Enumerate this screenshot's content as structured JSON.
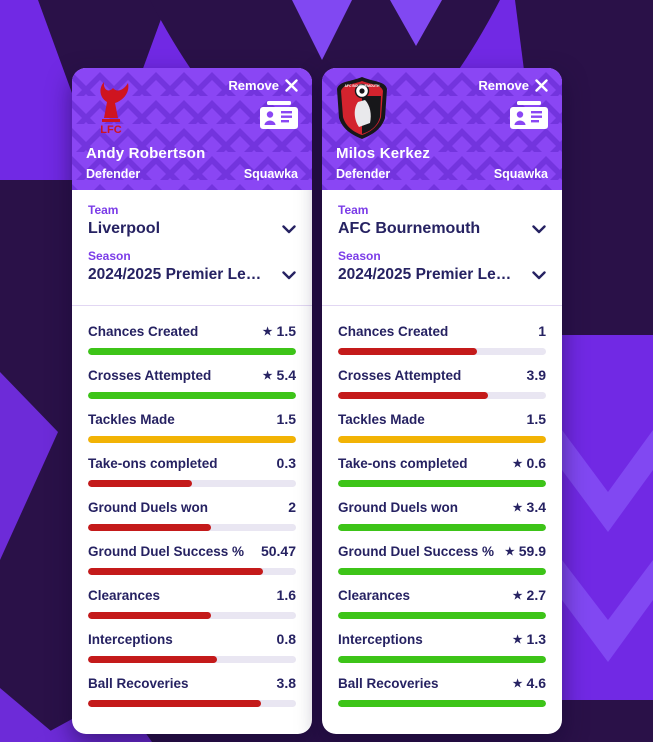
{
  "icons": {
    "star": "★",
    "close": "✕"
  },
  "colors": {
    "page_purple": "#7129e4",
    "page_dark": "#2a1148",
    "header_purple": "#8a46f4",
    "accent_purple": "#7b3ce8",
    "text_navy": "#262262",
    "bar_green": "#3dc418",
    "bar_amber": "#f2b305",
    "bar_red": "#c41a1a",
    "bar_track": "#e9e6f2"
  },
  "cards": [
    {
      "remove_label": "Remove",
      "crest_name": "Liverpool crest",
      "crest_text": "LFC",
      "player": {
        "name": "Andy Robertson",
        "position": "Defender"
      },
      "brand": "Squawka",
      "team": {
        "label": "Team",
        "value": "Liverpool"
      },
      "season": {
        "label": "Season",
        "value": "2024/2025 Premier Le…"
      },
      "stats": [
        {
          "label": "Chances Created",
          "value": "1.5",
          "star": true,
          "color": "green",
          "fill_pct": 100
        },
        {
          "label": "Crosses Attempted",
          "value": "5.4",
          "star": true,
          "color": "green",
          "fill_pct": 100
        },
        {
          "label": "Tackles Made",
          "value": "1.5",
          "star": false,
          "color": "amber",
          "fill_pct": 100
        },
        {
          "label": "Take-ons completed",
          "value": "0.3",
          "star": false,
          "color": "red",
          "fill_pct": 50
        },
        {
          "label": "Ground Duels won",
          "value": "2",
          "star": false,
          "color": "red",
          "fill_pct": 59
        },
        {
          "label": "Ground Duel Success %",
          "value": "50.47",
          "star": false,
          "color": "red",
          "fill_pct": 84
        },
        {
          "label": "Clearances",
          "value": "1.6",
          "star": false,
          "color": "red",
          "fill_pct": 59
        },
        {
          "label": "Interceptions",
          "value": "0.8",
          "star": false,
          "color": "red",
          "fill_pct": 62
        },
        {
          "label": "Ball Recoveries",
          "value": "3.8",
          "star": false,
          "color": "red",
          "fill_pct": 83
        }
      ]
    },
    {
      "remove_label": "Remove",
      "crest_name": "AFC Bournemouth crest",
      "crest_text": "AFC BOURNEMOUTH",
      "player": {
        "name": "Milos Kerkez",
        "position": "Defender"
      },
      "brand": "Squawka",
      "team": {
        "label": "Team",
        "value": "AFC Bournemouth"
      },
      "season": {
        "label": "Season",
        "value": "2024/2025 Premier Le…"
      },
      "stats": [
        {
          "label": "Chances Created",
          "value": "1",
          "star": false,
          "color": "red",
          "fill_pct": 67
        },
        {
          "label": "Crosses Attempted",
          "value": "3.9",
          "star": false,
          "color": "red",
          "fill_pct": 72
        },
        {
          "label": "Tackles Made",
          "value": "1.5",
          "star": false,
          "color": "amber",
          "fill_pct": 100
        },
        {
          "label": "Take-ons completed",
          "value": "0.6",
          "star": true,
          "color": "green",
          "fill_pct": 100
        },
        {
          "label": "Ground Duels won",
          "value": "3.4",
          "star": true,
          "color": "green",
          "fill_pct": 100
        },
        {
          "label": "Ground Duel Success %",
          "value": "59.9",
          "star": true,
          "color": "green",
          "fill_pct": 100
        },
        {
          "label": "Clearances",
          "value": "2.7",
          "star": true,
          "color": "green",
          "fill_pct": 100
        },
        {
          "label": "Interceptions",
          "value": "1.3",
          "star": true,
          "color": "green",
          "fill_pct": 100
        },
        {
          "label": "Ball Recoveries",
          "value": "4.6",
          "star": true,
          "color": "green",
          "fill_pct": 100
        }
      ]
    }
  ]
}
